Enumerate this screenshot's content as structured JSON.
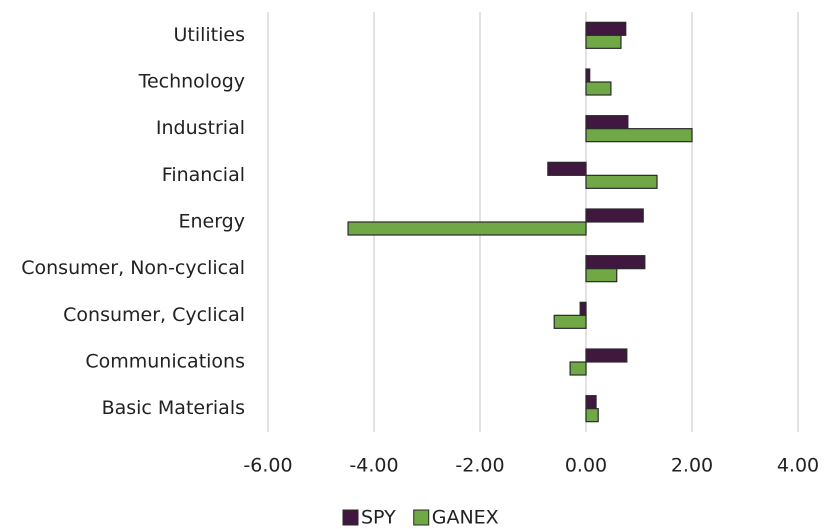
{
  "chart_data": {
    "type": "hbar",
    "categories": [
      "Utilities",
      "Technology",
      "Industrial",
      "Financial",
      "Energy",
      "Consumer, Non-cyclical",
      "Consumer, Cyclical",
      "Communications",
      "Basic Materials"
    ],
    "series": [
      {
        "name": "SPY",
        "color": "#40173f",
        "values": [
          0.75,
          0.07,
          0.79,
          -0.72,
          1.08,
          1.11,
          -0.11,
          0.77,
          0.19
        ]
      },
      {
        "name": "GANEX",
        "color": "#70a845",
        "values": [
          0.66,
          0.47,
          2.0,
          1.34,
          -4.49,
          0.58,
          -0.6,
          -0.3,
          0.23
        ]
      }
    ],
    "xlim": [
      -6,
      4
    ],
    "xticks": [
      {
        "value": -6,
        "label": "-6.00"
      },
      {
        "value": -4,
        "label": "-4.00"
      },
      {
        "value": -2,
        "label": "-2.00"
      },
      {
        "value": 0,
        "label": "0.00"
      },
      {
        "value": 2,
        "label": "2.00"
      },
      {
        "value": 4,
        "label": "4.00"
      }
    ],
    "grid": true,
    "legend": "bottom"
  }
}
